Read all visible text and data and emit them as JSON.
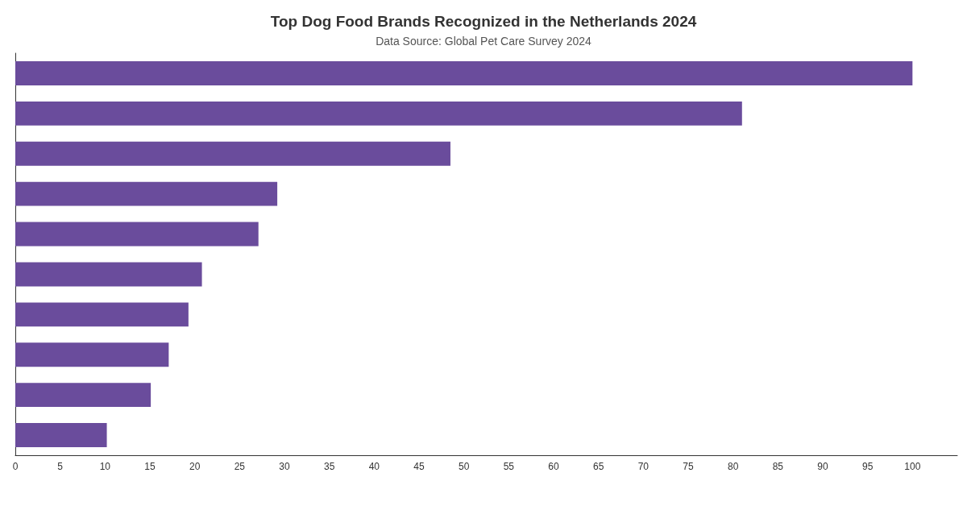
{
  "chart_data": {
    "type": "bar",
    "orientation": "horizontal",
    "title": "Top Dog Food Brands Recognized in the Netherlands 2024",
    "subtitle": "Data Source: Global Pet Care Survey 2024",
    "categories": [
      null,
      null,
      null,
      null,
      null,
      null,
      null,
      null,
      null,
      null
    ],
    "values": [
      100,
      81,
      48.5,
      29.2,
      27.1,
      20.8,
      19.3,
      17.1,
      15.1,
      10.2
    ],
    "color": "#6a4c9c",
    "xlim": [
      0,
      105
    ],
    "xticks": [
      0,
      5,
      10,
      15,
      20,
      25,
      30,
      35,
      40,
      45,
      50,
      55,
      60,
      65,
      70,
      75,
      80,
      85,
      90,
      95,
      100
    ],
    "grid": false
  }
}
